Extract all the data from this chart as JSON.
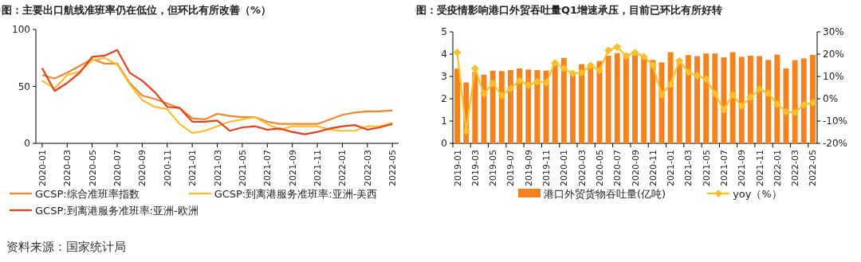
{
  "chart_data": [
    {
      "type": "line",
      "title": "图：主要出口航线准班率仍在低位，但环比有所改善（%）",
      "categories": [
        "2020-01",
        null,
        "2020-03",
        null,
        "2020-05",
        null,
        "2020-07",
        null,
        "2020-09",
        null,
        "2020-11",
        null,
        "2021-01",
        null,
        "2021-03",
        null,
        "2021-05",
        null,
        "2021-07",
        null,
        "2021-09",
        null,
        "2021-11",
        null,
        "2022-01",
        null,
        "2022-03",
        null,
        "2022-05"
      ],
      "series": [
        {
          "name": "GCSP:综合准班率指数",
          "color": "#f4862f",
          "values": [
            60,
            57,
            62,
            68,
            74,
            70,
            70,
            53,
            42,
            39,
            35,
            31,
            22,
            21,
            26,
            24,
            23,
            23,
            19,
            17,
            17,
            17,
            17,
            21,
            25,
            27,
            28,
            28,
            29
          ]
        },
        {
          "name": "GCSP:到离港服务准班率:亚洲-美西",
          "color": "#fdbb30",
          "values": [
            55,
            48,
            60,
            63,
            73,
            75,
            69,
            52,
            38,
            32,
            30,
            17,
            9,
            11,
            15,
            19,
            21,
            23,
            17,
            12,
            15,
            15,
            15,
            12,
            11,
            11,
            15,
            15,
            18
          ]
        },
        {
          "name": "GCSP:到离港服务准班率:亚洲-欧洲",
          "color": "#e5401c",
          "values": [
            66,
            46,
            53,
            62,
            76,
            77,
            82,
            62,
            55,
            45,
            32,
            31,
            19,
            19,
            20,
            11,
            14,
            15,
            12,
            13,
            10,
            8,
            10,
            13,
            15,
            16,
            12,
            14,
            17
          ]
        }
      ],
      "ylim": [
        0,
        100
      ],
      "yticks": [
        0,
        50,
        100
      ],
      "legend": "bottom",
      "annotations": [
        "资料来源：国家统计局"
      ]
    },
    {
      "type": "bar",
      "title": "图：受疫情影响港口外贸吞吐量Q1增速承压，目前已环比有所好转",
      "categories": [
        "2019-01",
        null,
        "2019-03",
        null,
        "2019-05",
        null,
        "2019-07",
        null,
        "2019-09",
        null,
        "2019-11",
        null,
        "2020-01",
        null,
        "2020-03",
        null,
        "2020-05",
        null,
        "2020-07",
        null,
        "2020-09",
        null,
        "2020-11",
        null,
        "2021-01",
        null,
        "2021-03",
        null,
        "2021-05",
        null,
        "2021-07",
        null,
        "2021-09",
        null,
        "2021-11",
        null,
        "2022-01",
        null,
        "2022-03",
        null,
        "2022-05"
      ],
      "series": [
        {
          "name": "港口外贸货物吞吐量(亿吨)",
          "color": "#f4821f",
          "values": [
            3.36,
            2.73,
            3.2,
            3.08,
            3.26,
            3.24,
            3.29,
            3.36,
            3.31,
            3.29,
            3.26,
            3.6,
            3.83,
            3.1,
            3.55,
            3.41,
            3.69,
            3.93,
            4.05,
            4.02,
            3.97,
            3.9,
            3.74,
            3.63,
            4.09,
            3.6,
            3.96,
            3.91,
            4.03,
            4.03,
            3.86,
            4.09,
            3.88,
            3.93,
            3.91,
            3.74,
            3.98,
            3.36,
            3.73,
            3.81,
            3.96
          ]
        },
        {
          "name": "yoy（%）",
          "type": "line",
          "axis": "y2",
          "marker": "diamond",
          "color": "#fbbf2a",
          "values": [
            20.8,
            -14.5,
            13.6,
            2.2,
            7,
            1.4,
            4.6,
            8.1,
            6.2,
            7.7,
            7.2,
            16.1,
            13.6,
            11.3,
            11.7,
            14.9,
            12.8,
            21.7,
            23.2,
            19.2,
            20.7,
            18.8,
            15,
            1.9,
            6.5,
            17,
            11.9,
            10.4,
            8.8,
            2.2,
            -4.9,
            1.8,
            -3.3,
            0.6,
            4.3,
            2.4,
            -2.4,
            -5.8,
            -6.2,
            -2.7,
            -1.8
          ]
        }
      ],
      "ylim": [
        0,
        5
      ],
      "yticks": [
        0,
        1,
        2,
        3,
        4,
        5
      ],
      "y2lim": [
        -20,
        30
      ],
      "y2ticks": [
        {
          "value": -20,
          "label": "-20%"
        },
        {
          "value": -10,
          "label": "-10%"
        },
        {
          "value": 0,
          "label": "0%"
        },
        {
          "value": 10,
          "label": "10%"
        },
        {
          "value": 20,
          "label": "20%"
        },
        {
          "value": 30,
          "label": "30%"
        }
      ],
      "legend": "bottom"
    }
  ]
}
